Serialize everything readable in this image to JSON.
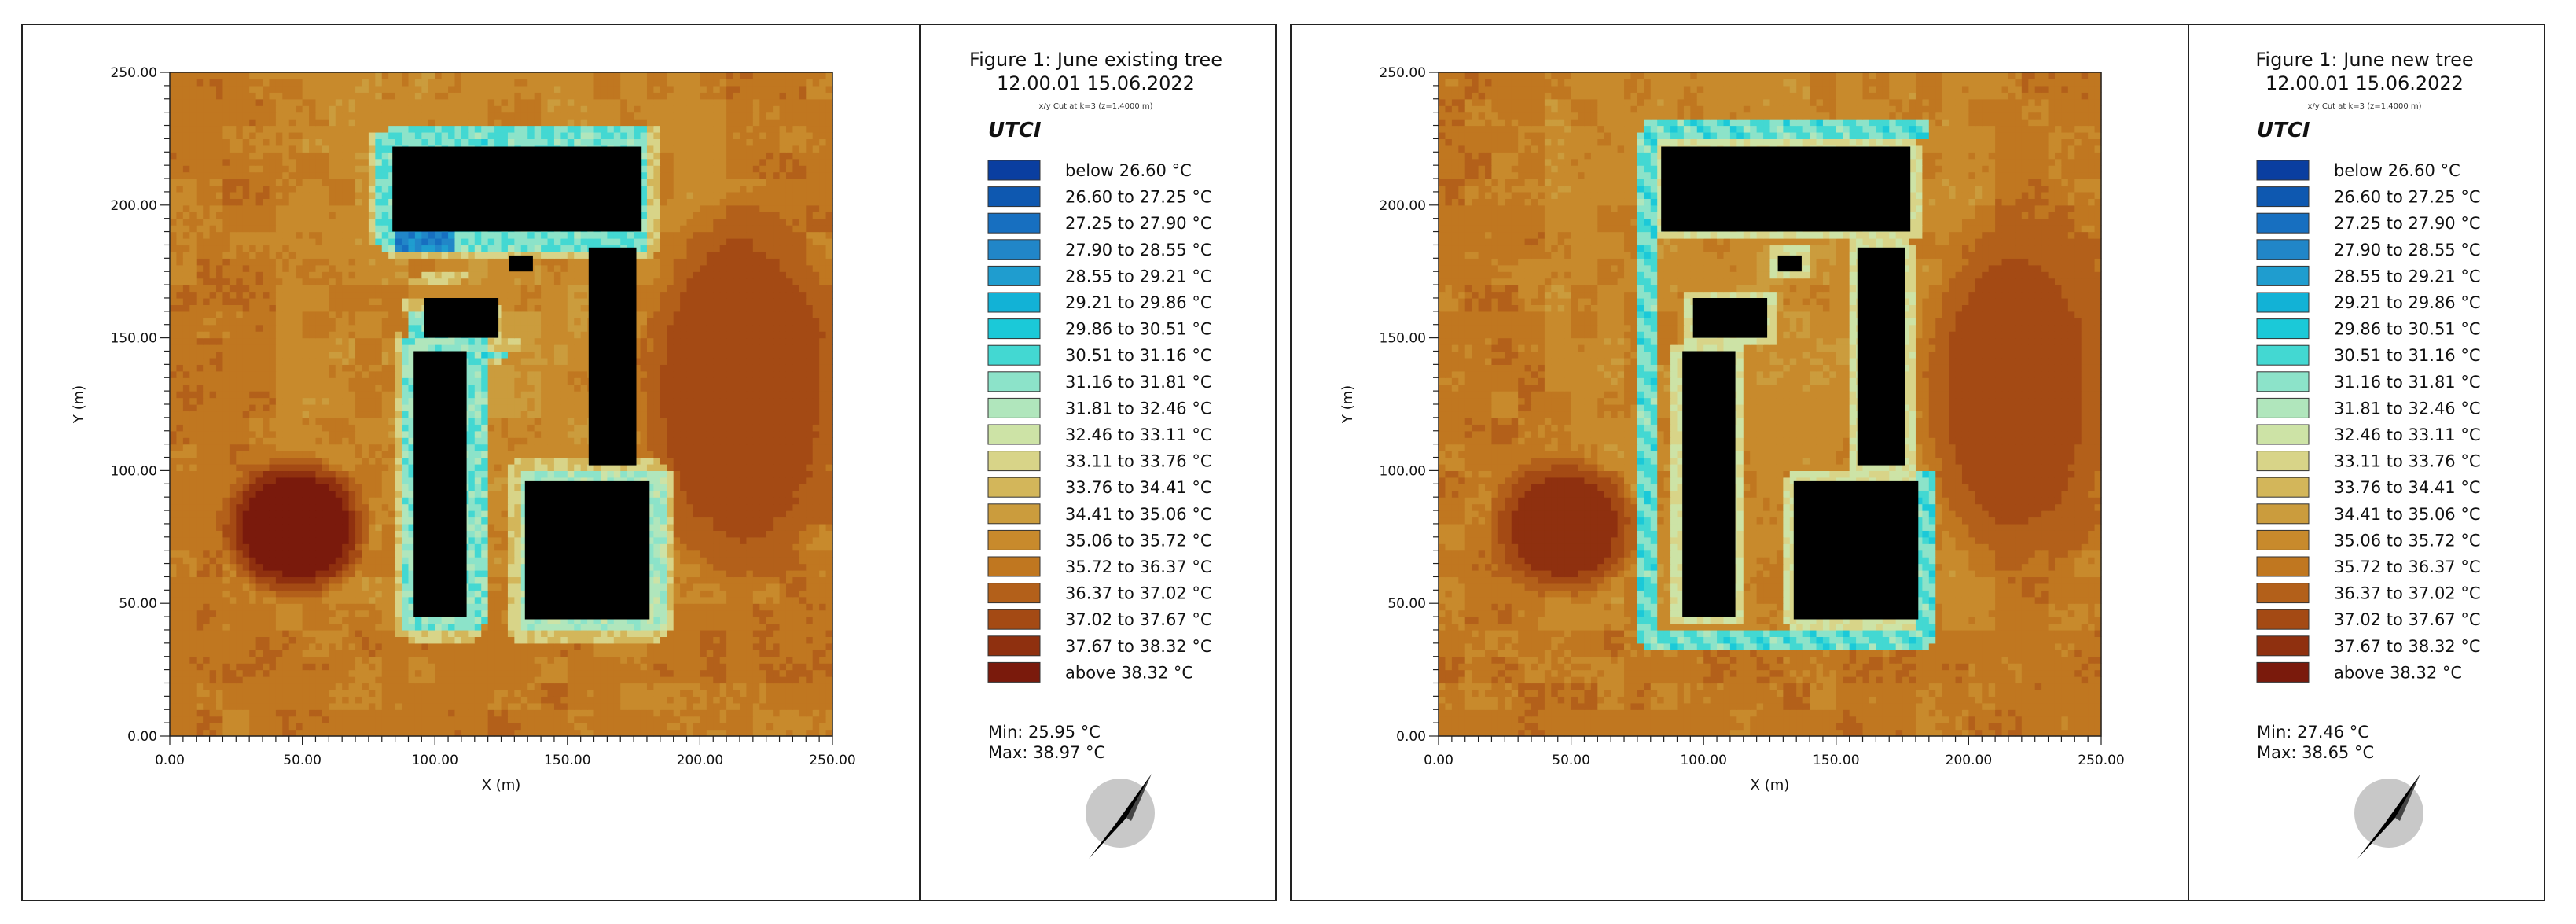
{
  "panels": [
    {
      "title_line1": "Figure 1: June existing tree",
      "title_line2": "12.00.01 15.06.2022",
      "subtitle": "x/y Cut at k=3 (z=1.4000 m)",
      "variable": "UTCI",
      "min_label": "Min: 25.95 °C",
      "max_label": "Max: 38.97 °C"
    },
    {
      "title_line1": "Figure 1: June new tree",
      "title_line2": "12.00.01 15.06.2022",
      "subtitle": "x/y Cut at k=3 (z=1.4000 m)",
      "variable": "UTCI",
      "min_label": "Min: 27.46 °C",
      "max_label": "Max: 38.65 °C"
    }
  ],
  "legend": [
    {
      "label": "below 26.60 °C",
      "color": "#0a3ea0"
    },
    {
      "label": "26.60 to 27.25 °C",
      "color": "#0e58b0"
    },
    {
      "label": "27.25 to 27.90 °C",
      "color": "#176fc0"
    },
    {
      "label": "27.90 to 28.55 °C",
      "color": "#2186c8"
    },
    {
      "label": "28.55 to 29.21 °C",
      "color": "#1f9dcf"
    },
    {
      "label": "29.21 to 29.86 °C",
      "color": "#12b2d6"
    },
    {
      "label": "29.86 to 30.51 °C",
      "color": "#1bc9d8"
    },
    {
      "label": "30.51 to 31.16 °C",
      "color": "#43d8d2"
    },
    {
      "label": "31.16 to 31.81 °C",
      "color": "#8ce3c9"
    },
    {
      "label": "31.81 to 32.46 °C",
      "color": "#b0e6bc"
    },
    {
      "label": "32.46 to 33.11 °C",
      "color": "#cde3a6"
    },
    {
      "label": "33.11 to 33.76 °C",
      "color": "#d8d488"
    },
    {
      "label": "33.76 to 34.41 °C",
      "color": "#d3b65a"
    },
    {
      "label": "34.41 to 35.06 °C",
      "color": "#cb9c3d"
    },
    {
      "label": "35.06 to 35.72 °C",
      "color": "#c88a2c"
    },
    {
      "label": "35.72 to 36.37 °C",
      "color": "#c07720"
    },
    {
      "label": "36.37 to 37.02 °C",
      "color": "#b3601a"
    },
    {
      "label": "37.02 to 37.67 °C",
      "color": "#a44a14"
    },
    {
      "label": "37.67 to 38.32 °C",
      "color": "#8f300f"
    },
    {
      "label": "above 38.32 °C",
      "color": "#7a1a0c"
    }
  ],
  "chart_data": [
    {
      "type": "heatmap",
      "title": "Figure 1: June existing tree",
      "xlabel": "X (m)",
      "ylabel": "Y (m)",
      "xlim": [
        0,
        250
      ],
      "ylim": [
        0,
        250
      ],
      "x_ticks": [
        "0.00",
        "50.00",
        "100.00",
        "150.00",
        "200.00",
        "250.00"
      ],
      "y_ticks": [
        "0.00",
        "50.00",
        "100.00",
        "150.00",
        "200.00",
        "250.00"
      ],
      "min": 25.95,
      "max": 38.97,
      "buildings": [
        {
          "x": [
            84,
            178
          ],
          "y": [
            190,
            222
          ]
        },
        {
          "x": [
            92,
            112
          ],
          "y": [
            45,
            145
          ]
        },
        {
          "x": [
            96,
            124
          ],
          "y": [
            150,
            165
          ]
        },
        {
          "x": [
            128,
            137
          ],
          "y": [
            175,
            181
          ]
        },
        {
          "x": [
            158,
            176
          ],
          "y": [
            102,
            184
          ]
        },
        {
          "x": [
            134,
            181
          ],
          "y": [
            44,
            96
          ]
        }
      ],
      "cool_zones": [
        {
          "x": [
            78,
            180
          ],
          "y": [
            183,
            230
          ],
          "level": 30.5
        },
        {
          "x": [
            84,
            108
          ],
          "y": [
            175,
            200
          ],
          "level": 27.6
        },
        {
          "x": [
            88,
            120
          ],
          "y": [
            40,
            160
          ],
          "level": 30.8
        },
        {
          "x": [
            118,
            132
          ],
          "y": [
            130,
            145
          ],
          "level": 30.0
        },
        {
          "x": [
            132,
            188
          ],
          "y": [
            40,
            100
          ],
          "level": 31.3
        }
      ],
      "hot_zones": [
        {
          "x": [
            25,
            70
          ],
          "y": [
            58,
            100
          ],
          "level": 38.5
        },
        {
          "x": [
            180,
            250
          ],
          "y": [
            60,
            200
          ],
          "level": 37.3
        }
      ]
    },
    {
      "type": "heatmap",
      "title": "Figure 1: June new tree",
      "xlabel": "X (m)",
      "ylabel": "Y (m)",
      "xlim": [
        0,
        250
      ],
      "ylim": [
        0,
        250
      ],
      "x_ticks": [
        "0.00",
        "50.00",
        "100.00",
        "150.00",
        "200.00",
        "250.00"
      ],
      "y_ticks": [
        "0.00",
        "50.00",
        "100.00",
        "150.00",
        "200.00",
        "250.00"
      ],
      "min": 27.46,
      "max": 38.65,
      "buildings": [
        {
          "x": [
            84,
            178
          ],
          "y": [
            190,
            222
          ]
        },
        {
          "x": [
            92,
            112
          ],
          "y": [
            45,
            145
          ]
        },
        {
          "x": [
            96,
            124
          ],
          "y": [
            150,
            165
          ]
        },
        {
          "x": [
            128,
            137
          ],
          "y": [
            175,
            181
          ]
        },
        {
          "x": [
            158,
            176
          ],
          "y": [
            102,
            184
          ]
        },
        {
          "x": [
            134,
            181
          ],
          "y": [
            44,
            96
          ]
        }
      ],
      "tree_ring": {
        "x": [
          78,
          184
        ],
        "y": [
          36,
          228
        ],
        "level": 30.2
      },
      "hot_zones": [
        {
          "x": [
            25,
            70
          ],
          "y": [
            58,
            100
          ],
          "level": 37.8
        },
        {
          "x": [
            185,
            250
          ],
          "y": [
            60,
            200
          ],
          "level": 37.1
        }
      ]
    }
  ]
}
